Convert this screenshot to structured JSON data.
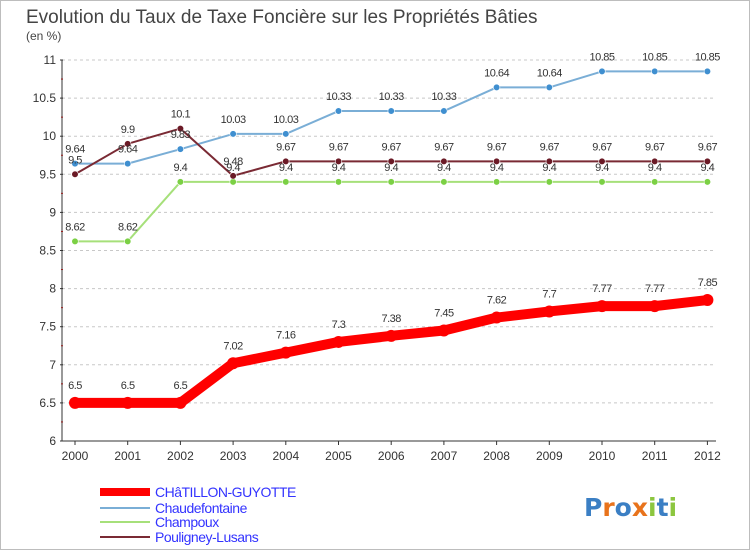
{
  "chart_data": {
    "type": "line",
    "title": "Evolution du Taux de Taxe Foncière sur les Propriétés Bâties",
    "subtitle": "(en %)",
    "x": [
      "2000",
      "2001",
      "2002",
      "2003",
      "2004",
      "2005",
      "2006",
      "2007",
      "2008",
      "2009",
      "2010",
      "2011",
      "2012"
    ],
    "y_ticks": [
      "6",
      "6.5",
      "7",
      "7.5",
      "8",
      "8.5",
      "9",
      "9.5",
      "10",
      "10.5",
      "11"
    ],
    "ylim": [
      6,
      11
    ],
    "grid": "horizontal dashed",
    "legend_position": "bottom-left",
    "series": [
      {
        "name": "CHâTILLON-GUYOTTE",
        "color": "#ff0000",
        "values": [
          6.5,
          6.5,
          6.5,
          7.02,
          7.16,
          7.3,
          7.38,
          7.45,
          7.62,
          7.7,
          7.77,
          7.77,
          7.85
        ],
        "labels": [
          "6.5",
          "6.5",
          "6.5",
          "7.02",
          "7.16",
          "7.3",
          "7.38",
          "7.45",
          "7.62",
          "7.7",
          "7.77",
          "7.77",
          "7.85"
        ]
      },
      {
        "name": "Chaudefontaine",
        "color": "#7aaed6",
        "marker_color": "#3f8fd0",
        "values": [
          9.64,
          9.64,
          9.83,
          10.03,
          10.03,
          10.33,
          10.33,
          10.33,
          10.64,
          10.64,
          10.85,
          10.85,
          10.85
        ],
        "labels": [
          "9.64",
          "9.64",
          "9.83",
          "10.03",
          "10.03",
          "10.33",
          "10.33",
          "10.33",
          "10.64",
          "10.64",
          "10.85",
          "10.85",
          "10.85"
        ]
      },
      {
        "name": "Champoux",
        "color": "#a6e07a",
        "marker_color": "#7bd044",
        "values": [
          8.62,
          8.62,
          9.4,
          9.4,
          9.4,
          9.4,
          9.4,
          9.4,
          9.4,
          9.4,
          9.4,
          9.4,
          9.4
        ],
        "labels": [
          "8.62",
          "8.62",
          "9.4",
          "9.4",
          "9.4",
          "9.4",
          "9.4",
          "9.4",
          "9.4",
          "9.4",
          "9.4",
          "9.4",
          "9.4"
        ]
      },
      {
        "name": "Pouligney-Lusans",
        "color": "#7a2a34",
        "marker_color": "#6b1a26",
        "values": [
          9.5,
          9.9,
          10.1,
          9.48,
          9.67,
          9.67,
          9.67,
          9.67,
          9.67,
          9.67,
          9.67,
          9.67,
          9.67
        ],
        "labels": [
          "9.5",
          "9.9",
          "10.1",
          "9.48",
          "9.67",
          "9.67",
          "9.67",
          "9.67",
          "9.67",
          "9.67",
          "9.67",
          "9.67",
          "9.67"
        ]
      }
    ]
  },
  "brand": {
    "logo_text": "Proxiti",
    "letter_colors": [
      "#3b7fc4",
      "#e8731c",
      "#3b7fc4",
      "#e8731c",
      "#8cc63f",
      "#3b7fc4",
      "#8cc63f"
    ]
  },
  "colors": {
    "title": "#444444",
    "axis": "#333333",
    "grid": "#c8c8c8",
    "tick_mark": "#ff0000",
    "legend_text": "#3333ff",
    "label_text": "#333333"
  }
}
